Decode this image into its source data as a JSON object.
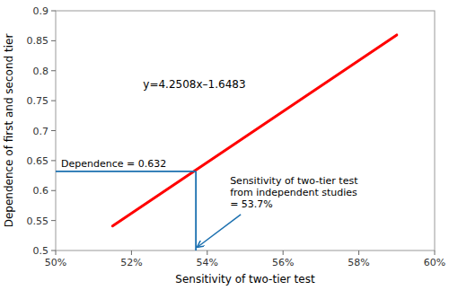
{
  "chart_data": {
    "type": "line",
    "x_label": "Sensitivity of two-tier test",
    "y_label": "Dependence of first and second tier",
    "series": [
      {
        "type": "line",
        "x": [
          0.515,
          0.59
        ],
        "values": [
          0.540862,
          0.859672
        ],
        "color": "#ff0000"
      },
      {
        "type": "crosshair",
        "x": [
          0.537
        ],
        "values": [
          0.632
        ],
        "color": "#1a6faf"
      }
    ],
    "annotations": [
      "Dependence = 0.632",
      "Sensitivity of two-tier test\nfrom independent studies\n= 53.7%",
      "y=4.2508x–1.6483"
    ],
    "xlim": [
      0.5,
      0.6
    ],
    "ylim": [
      0.5,
      0.9
    ],
    "xticks": [
      {
        "value": 0.5,
        "label": "50%"
      },
      {
        "value": 0.52,
        "label": "52%"
      },
      {
        "value": 0.54,
        "label": "54%"
      },
      {
        "value": 0.56,
        "label": "56%"
      },
      {
        "value": 0.58,
        "label": "58%"
      },
      {
        "value": 0.6,
        "label": "60%"
      }
    ],
    "yticks": [
      0.5,
      0.55,
      0.6,
      0.65,
      0.7,
      0.75,
      0.8,
      0.85,
      0.9
    ],
    "grid": false
  }
}
